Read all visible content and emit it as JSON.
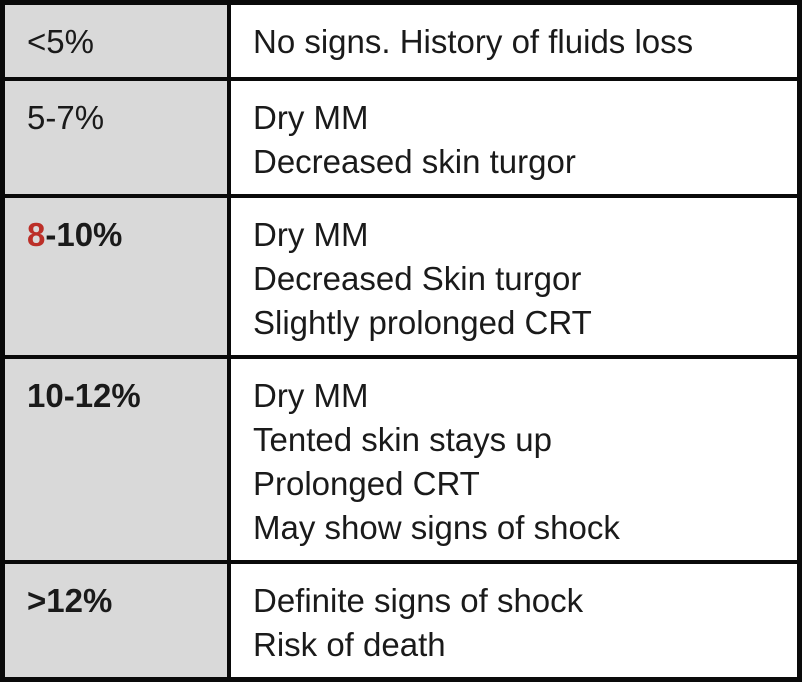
{
  "colors": {
    "left_column_bg_gray": "#d9d9d9",
    "accent_red": "#bc2f28",
    "grid_border_black": "#0a0a0a",
    "text_black": "#1a1a1a",
    "signs_cell_bg_white": "#ffffff"
  },
  "table": {
    "rows": [
      {
        "range": "<5%",
        "signs": [
          "No signs. History of fluids loss"
        ]
      },
      {
        "range": "5-7%",
        "signs": [
          "Dry MM",
          "Decreased skin turgor"
        ]
      },
      {
        "range_red_part": "8",
        "range_rest": "-10%",
        "signs": [
          "Dry MM",
          "Decreased Skin turgor",
          "Slightly prolonged CRT"
        ]
      },
      {
        "range": "10-12%",
        "signs": [
          "Dry MM",
          "Tented skin stays up",
          "Prolonged CRT",
          "May show signs of shock"
        ]
      },
      {
        "range": ">12%",
        "signs": [
          "Definite signs of shock",
          "Risk of death"
        ]
      }
    ]
  }
}
